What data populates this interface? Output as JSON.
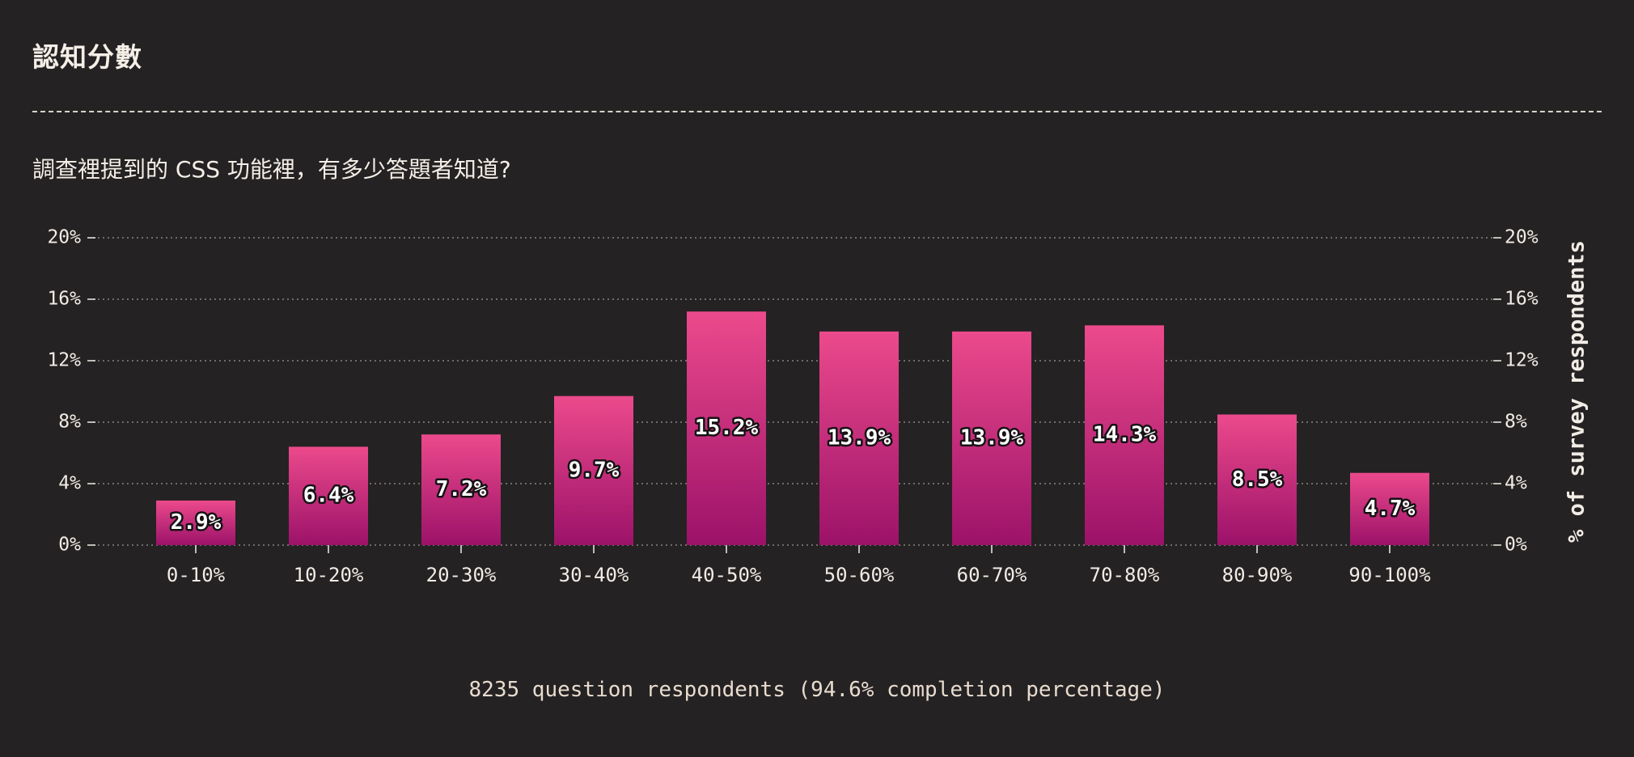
{
  "header": {
    "title": "認知分數",
    "question": "調查裡提到的 CSS 功能裡，有多少答題者知道?"
  },
  "footer": {
    "respondents": "8235 question respondents (94.6% completion percentage)"
  },
  "colors": {
    "background": "#252223",
    "bar_top": "#ec4a8c",
    "bar_bottom": "#9c1269",
    "text": "#f2ece6",
    "grid": "#8a8480"
  },
  "chart_data": {
    "type": "bar",
    "categories": [
      "0-10%",
      "10-20%",
      "20-30%",
      "30-40%",
      "40-50%",
      "50-60%",
      "60-70%",
      "70-80%",
      "80-90%",
      "90-100%"
    ],
    "values": [
      2.9,
      6.4,
      7.2,
      9.7,
      15.2,
      13.9,
      13.9,
      14.3,
      8.5,
      4.7
    ],
    "value_labels": [
      "2.9%",
      "6.4%",
      "7.2%",
      "9.7%",
      "15.2%",
      "13.9%",
      "13.9%",
      "14.3%",
      "8.5%",
      "4.7%"
    ],
    "yticks": [
      0,
      4,
      8,
      12,
      16,
      20
    ],
    "ytick_labels": [
      "0%",
      "4%",
      "8%",
      "12%",
      "16%",
      "20%"
    ],
    "ylim": [
      0,
      20
    ],
    "ylabel": "% of survey respondents",
    "xlabel": "",
    "grid": true
  }
}
